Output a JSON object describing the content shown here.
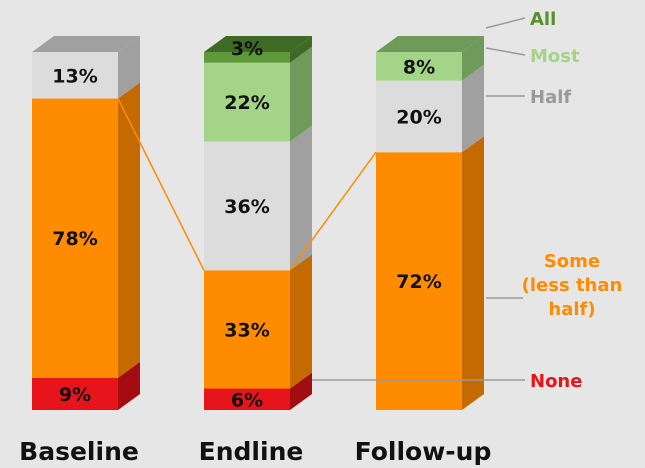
{
  "chart_data": {
    "type": "bar",
    "stacked": true,
    "three_d": true,
    "categories": [
      "Baseline",
      "Endline",
      "Follow-up"
    ],
    "series": [
      {
        "name": "None",
        "color": "#e8141b",
        "side_color": "#a30d12",
        "values": [
          9,
          6,
          0
        ]
      },
      {
        "name": "Some (less than half)",
        "color": "#ff8c00",
        "side_color": "#c46a00",
        "values": [
          78,
          33,
          72
        ]
      },
      {
        "name": "Half",
        "color": "#dcdcdc",
        "side_color": "#a0a0a0",
        "values": [
          13,
          36,
          20
        ]
      },
      {
        "name": "Most",
        "color": "#a3d487",
        "side_color": "#6f9a5a",
        "values": [
          0,
          22,
          8
        ]
      },
      {
        "name": "All",
        "color": "#5f9a3a",
        "side_color": "#3f6a25",
        "values": [
          0,
          3,
          0
        ]
      }
    ],
    "segment_labels": [
      [
        "9%",
        "78%",
        "13%",
        "",
        ""
      ],
      [
        "6%",
        "33%",
        "36%",
        "22%",
        "3%"
      ],
      [
        "",
        "72%",
        "20%",
        "8%",
        ""
      ]
    ],
    "legend": [
      {
        "label": "All",
        "lines": [
          "All"
        ],
        "color": "#5b8f2e"
      },
      {
        "label": "Most",
        "lines": [
          "Most"
        ],
        "color": "#a3d487"
      },
      {
        "label": "Half",
        "lines": [
          "Half"
        ],
        "color": "#9a9a9a"
      },
      {
        "label": "Some (less than half)",
        "lines": [
          "Some",
          "(less than",
          "half)"
        ],
        "color": "#ff8c00"
      },
      {
        "label": "None",
        "lines": [
          "None"
        ],
        "color": "#e8141b"
      }
    ],
    "connector_color": "#ff8c00",
    "legend_line_color": "#9a9a9a",
    "legend_placement": "right",
    "grid": false,
    "ylim": [
      0,
      100
    ]
  }
}
